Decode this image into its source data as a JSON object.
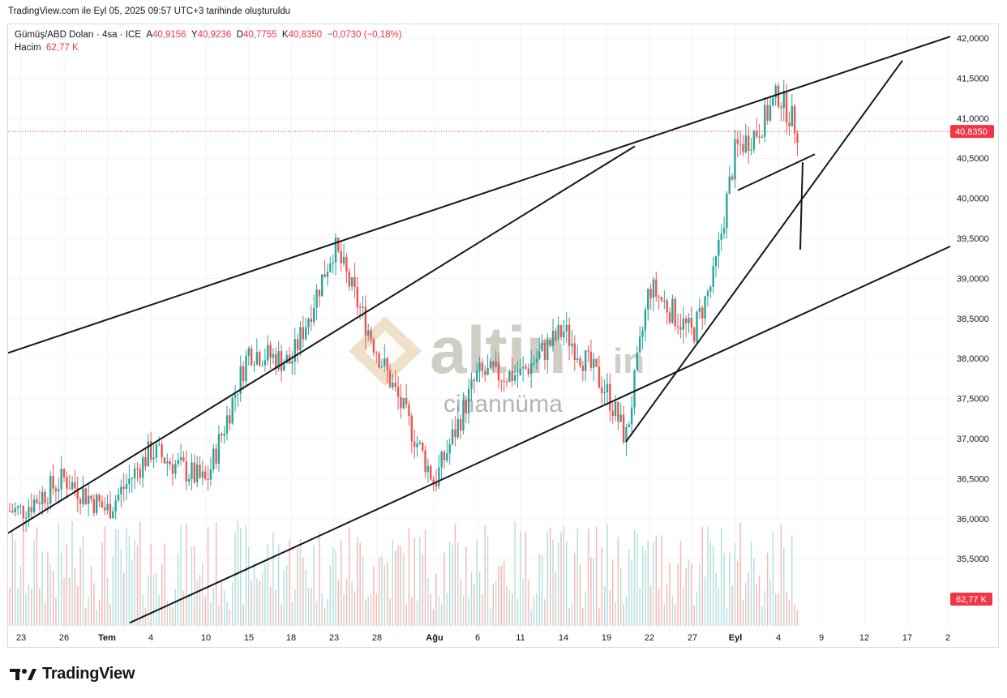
{
  "header": {
    "snapshot_text": "TradingView.com ile Eyl 05, 2025 09:57 UTC+3 tarihinde oluşturuldu"
  },
  "legend": {
    "symbol": "Gümüş/ABD Doları · 4sa · ICE",
    "open_key": "A",
    "open": "40,9156",
    "high_key": "Y",
    "high": "40,9236",
    "low_key": "D",
    "low": "40,7755",
    "close_key": "K",
    "close": "40,8350",
    "change": "−0,0730 (−0,18%)",
    "volume_label": "Hacim",
    "volume": "62,77 K"
  },
  "watermark": {
    "brand": "altin",
    "suffix": "in",
    "sub": "cihannüma"
  },
  "footer": {
    "brand": "TradingView"
  },
  "colors": {
    "up": "#26a69a",
    "down": "#ef5350",
    "vol_up": "#b2dfdb",
    "vol_down": "#f7b5b3",
    "price_tag": "#f23645",
    "grid": "#f0f3fa"
  },
  "chart_data": {
    "type": "candlestick",
    "title": "Gümüş/ABD Doları · 4sa · ICE",
    "price_axis": {
      "ticks": [
        "42,0000",
        "41,5000",
        "41,0000",
        "40,5000",
        "40,0000",
        "39,5000",
        "39,0000",
        "38,5000",
        "38,0000",
        "37,5000",
        "37,0000",
        "36,5000",
        "36,0000",
        "35,5000"
      ],
      "ylim": [
        35.0,
        42.1
      ],
      "last_price": 40.835,
      "last_price_label": "40,8350",
      "volume_label": "62,77 K"
    },
    "time_axis": {
      "labels": [
        "23",
        "26",
        "Tem",
        "4",
        "10",
        "15",
        "18",
        "23",
        "28",
        "Ağu",
        "6",
        "11",
        "14",
        "19",
        "22",
        "27",
        "Eyl",
        "4",
        "9",
        "12",
        "17",
        "2"
      ],
      "bold": [
        "Tem",
        "Ağu",
        "Eyl"
      ]
    },
    "anchors": [
      {
        "label": "23",
        "price": 36.1
      },
      {
        "label": "26",
        "price": 36.5
      },
      {
        "label": "Tem",
        "price": 36.1
      },
      {
        "label": "4",
        "price": 36.85
      },
      {
        "label": "10",
        "price": 36.45
      },
      {
        "label": "15",
        "price": 38.1
      },
      {
        "label": "18",
        "price": 37.95
      },
      {
        "label": "23",
        "price": 39.4
      },
      {
        "label": "28",
        "price": 38.1
      },
      {
        "label": "Ağu",
        "price": 36.45
      },
      {
        "label": "6",
        "price": 37.8
      },
      {
        "label": "11",
        "price": 37.8
      },
      {
        "label": "14",
        "price": 38.35
      },
      {
        "label": "19",
        "price": 37.6
      },
      {
        "label": "20",
        "price": 37.0
      },
      {
        "label": "22",
        "price": 38.9
      },
      {
        "label": "27",
        "price": 38.3
      },
      {
        "label": "29",
        "price": 39.0
      },
      {
        "label": "Eyl",
        "price": 40.6
      },
      {
        "label": "3",
        "price": 40.85
      },
      {
        "label": "4",
        "price": 41.3
      },
      {
        "label": "5",
        "price": 40.83
      }
    ],
    "trendlines": [
      {
        "name": "upper-channel",
        "from": {
          "label": "",
          "price": 38.07
        },
        "to": {
          "label": "",
          "price": 42.02
        }
      },
      {
        "name": "lower-channel",
        "from": {
          "label": "",
          "price": 34.7
        },
        "to": {
          "label": "",
          "price": 39.4
        }
      },
      {
        "name": "mid-rising-line",
        "from": {
          "label": "",
          "price": 35.82
        },
        "to": {
          "label": "",
          "price": 40.65
        }
      },
      {
        "name": "steep-rising-line",
        "from": {
          "label": "20",
          "price": 36.96
        },
        "to": {
          "label": "",
          "price": 41.72
        }
      },
      {
        "name": "short-support-line",
        "from": {
          "label": "",
          "price": 40.1
        },
        "to": {
          "label": "",
          "price": 40.55
        }
      },
      {
        "name": "short-vertical-line",
        "from": {
          "label": "",
          "price": 40.45
        },
        "to": {
          "label": "",
          "price": 39.36
        }
      }
    ]
  }
}
